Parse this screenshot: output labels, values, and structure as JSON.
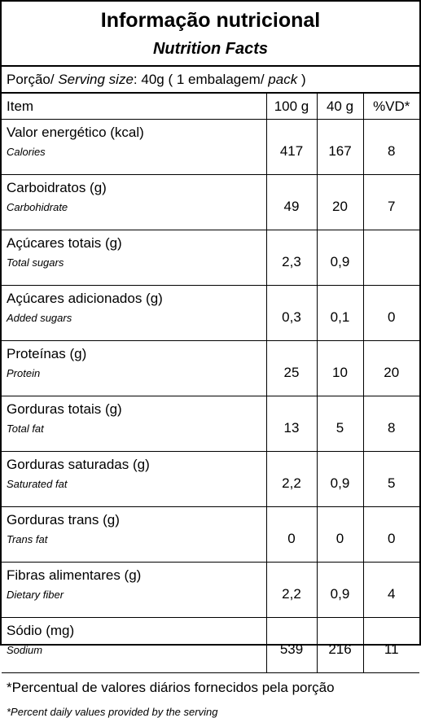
{
  "header": {
    "title": "Informação nutricional",
    "subtitle": "Nutrition Facts"
  },
  "serving": [
    "Porção/ ",
    "Serving size",
    ": 40g ( 1 embalagem/ ",
    "pack",
    " )"
  ],
  "table": {
    "columns": [
      "Item",
      "100 g",
      "40 g",
      "%VD*"
    ],
    "rows": [
      {
        "name": "Valor energético (kcal)",
        "name_en": "Calories",
        "values": [
          417,
          167,
          8
        ]
      },
      {
        "name": "Carboidratos (g)",
        "name_en": "Carbohidrate",
        "values": [
          49,
          20,
          7
        ]
      },
      {
        "name": "Açúcares totais (g)",
        "name_en": "Total sugars",
        "values": [
          "2,3",
          "0,9",
          null
        ]
      },
      {
        "name": "Açúcares adicionados (g)",
        "name_en": "Added sugars",
        "values": [
          "0,3",
          "0,1",
          0
        ]
      },
      {
        "name": "Proteínas (g)",
        "name_en": "Protein",
        "values": [
          25,
          10,
          20
        ]
      },
      {
        "name": "Gorduras totais (g)",
        "name_en": "Total fat",
        "values": [
          13,
          5,
          8
        ]
      },
      {
        "name": "Gorduras saturadas (g)",
        "name_en": "Saturated fat",
        "values": [
          "2,2",
          "0,9",
          5
        ]
      },
      {
        "name": "Gorduras trans (g)",
        "name_en": "Trans fat",
        "values": [
          0,
          0,
          0
        ]
      },
      {
        "name": "Fibras alimentares (g)",
        "name_en": "Dietary fiber",
        "values": [
          "2,2",
          "0,9",
          4
        ]
      },
      {
        "name": "Sódio (mg)",
        "name_en": "Sodium",
        "values": [
          539,
          216,
          11
        ]
      }
    ]
  },
  "footer": {
    "note": "*Percentual de valores diários fornecidos pela porção",
    "note_en": "*Percent daily values provided by the serving"
  }
}
